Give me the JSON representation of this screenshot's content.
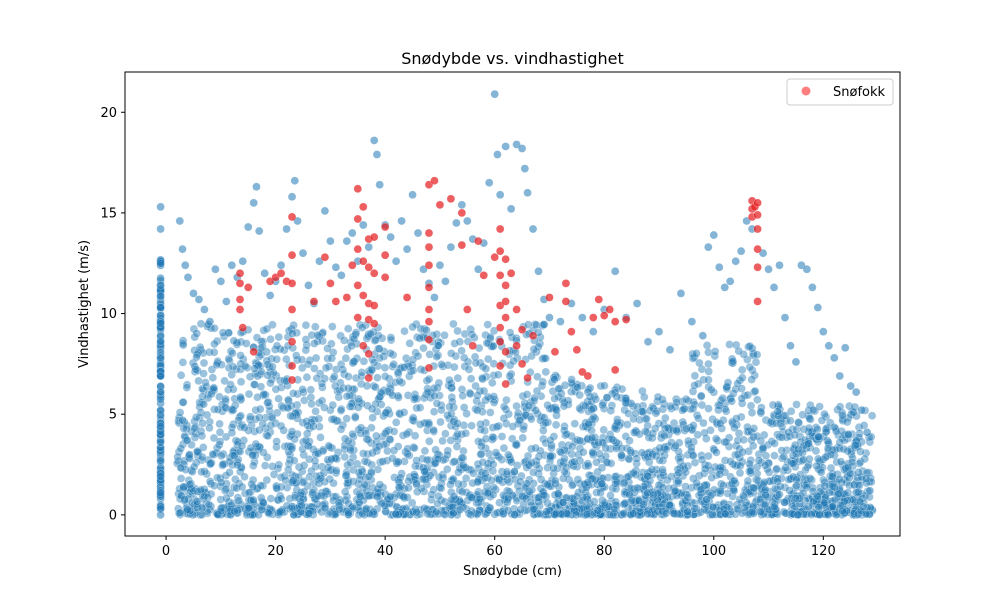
{
  "chart_data": {
    "type": "scatter",
    "title": "Snødybde vs. vindhastighet",
    "xlabel": "Snødybde (cm)",
    "ylabel": "Vindhastighet (m/s)",
    "xlim": [
      -7.5,
      134
    ],
    "ylim": [
      -1.05,
      22.0
    ],
    "x_ticks": [
      0,
      20,
      40,
      60,
      80,
      100,
      120
    ],
    "y_ticks": [
      0,
      5,
      10,
      15,
      20
    ],
    "x_tick_labels": [
      "0",
      "20",
      "40",
      "60",
      "80",
      "100",
      "120"
    ],
    "y_tick_labels": [
      "0",
      "5",
      "10",
      "15",
      "20"
    ],
    "grid": false,
    "legend_position": "upper right",
    "legend": [
      {
        "label": "Snøfokk",
        "color": "#ff0000"
      }
    ],
    "colors": {
      "normal": "#1f77b4",
      "snofokk": "#e41a1c"
    },
    "series": [
      {
        "name": "",
        "color": "#1f77b4",
        "points": [
          [
            -1,
            15.3
          ],
          [
            -1,
            14.2
          ],
          [
            -1,
            12.5
          ],
          [
            -1,
            11.4
          ],
          [
            -1,
            10.3
          ],
          [
            -1,
            9.5
          ],
          [
            -1,
            8.6
          ],
          [
            -1,
            7.8
          ],
          [
            -1,
            6.9
          ],
          [
            -1,
            6.1
          ],
          [
            -1,
            5.2
          ],
          [
            -1,
            4.4
          ],
          [
            -1,
            3.6
          ],
          [
            -1,
            2.7
          ],
          [
            -1,
            1.9
          ],
          [
            -1,
            1.1
          ],
          [
            -1,
            0.3
          ],
          [
            -1,
            0.0
          ],
          [
            2.5,
            14.6
          ],
          [
            3,
            13.2
          ],
          [
            3.5,
            12.4
          ],
          [
            4,
            11.8
          ],
          [
            5,
            11.0
          ],
          [
            6,
            10.7
          ],
          [
            7,
            10.2
          ],
          [
            8,
            9.6
          ],
          [
            9,
            12.2
          ],
          [
            10,
            11.6
          ],
          [
            11,
            10.6
          ],
          [
            12,
            12.4
          ],
          [
            13,
            11.8
          ],
          [
            14,
            12.6
          ],
          [
            15,
            14.3
          ],
          [
            16,
            15.5
          ],
          [
            16.5,
            16.3
          ],
          [
            17,
            14.1
          ],
          [
            18,
            12.0
          ],
          [
            19,
            10.9
          ],
          [
            20,
            11.6
          ],
          [
            21,
            12.4
          ],
          [
            22,
            14.2
          ],
          [
            23,
            15.8
          ],
          [
            23.5,
            16.6
          ],
          [
            24,
            14.6
          ],
          [
            25,
            13.0
          ],
          [
            26,
            11.4
          ],
          [
            27,
            10.5
          ],
          [
            28,
            12.6
          ],
          [
            29,
            15.1
          ],
          [
            30,
            13.6
          ],
          [
            31,
            12.3
          ],
          [
            32,
            11.9
          ],
          [
            33,
            13.6
          ],
          [
            34,
            14.0
          ],
          [
            35,
            12.6
          ],
          [
            36,
            14.4
          ],
          [
            37,
            13.3
          ],
          [
            38,
            18.6
          ],
          [
            38.5,
            17.9
          ],
          [
            39,
            16.4
          ],
          [
            40,
            14.4
          ],
          [
            41,
            13.8
          ],
          [
            42,
            12.6
          ],
          [
            43,
            14.6
          ],
          [
            44,
            13.2
          ],
          [
            45,
            15.9
          ],
          [
            46,
            14.0
          ],
          [
            47,
            12.2
          ],
          [
            48,
            11.5
          ],
          [
            49,
            10.8
          ],
          [
            50,
            12.4
          ],
          [
            51,
            11.6
          ],
          [
            52,
            13.3
          ],
          [
            53,
            14.5
          ],
          [
            54,
            15.4
          ],
          [
            55,
            14.6
          ],
          [
            56,
            13.7
          ],
          [
            57,
            12.2
          ],
          [
            58,
            13.5
          ],
          [
            59,
            16.5
          ],
          [
            60,
            20.9
          ],
          [
            60.5,
            17.9
          ],
          [
            61,
            15.9
          ],
          [
            62,
            18.3
          ],
          [
            63,
            15.2
          ],
          [
            64,
            18.4
          ],
          [
            65,
            18.2
          ],
          [
            65.5,
            17.2
          ],
          [
            66,
            16.0
          ],
          [
            67,
            14.2
          ],
          [
            68,
            12.1
          ],
          [
            69,
            10.7
          ],
          [
            70,
            9.8
          ],
          [
            72,
            9.6
          ],
          [
            74,
            10.5
          ],
          [
            76,
            9.8
          ],
          [
            78,
            9.1
          ],
          [
            80,
            10.2
          ],
          [
            82,
            12.1
          ],
          [
            84,
            9.8
          ],
          [
            86,
            10.5
          ],
          [
            88,
            8.6
          ],
          [
            90,
            9.1
          ],
          [
            92,
            8.2
          ],
          [
            94,
            11.0
          ],
          [
            96,
            9.6
          ],
          [
            98,
            8.9
          ],
          [
            99,
            13.3
          ],
          [
            100,
            13.9
          ],
          [
            101,
            12.3
          ],
          [
            102,
            11.3
          ],
          [
            103,
            11.6
          ],
          [
            104,
            12.6
          ],
          [
            105,
            13.1
          ],
          [
            106,
            14.6
          ],
          [
            107,
            14.2
          ],
          [
            109,
            13.0
          ],
          [
            110,
            12.2
          ],
          [
            111,
            11.3
          ],
          [
            112,
            12.4
          ],
          [
            113,
            9.8
          ],
          [
            114,
            8.4
          ],
          [
            115,
            7.6
          ],
          [
            116,
            12.4
          ],
          [
            117,
            12.2
          ],
          [
            118,
            11.3
          ],
          [
            119,
            10.3
          ],
          [
            120,
            9.1
          ],
          [
            121,
            8.4
          ],
          [
            122,
            7.8
          ],
          [
            123,
            6.9
          ],
          [
            124,
            8.3
          ],
          [
            125,
            6.4
          ],
          [
            126,
            6.1
          ],
          [
            127,
            5.2
          ],
          [
            128,
            4.1
          ],
          [
            128.5,
            1.2
          ]
        ]
      },
      {
        "name": "Snøfokk",
        "color": "#e41a1c",
        "points": [
          [
            13.5,
            12.0
          ],
          [
            13.5,
            11.5
          ],
          [
            13.5,
            10.7
          ],
          [
            13.5,
            10.2
          ],
          [
            14,
            9.3
          ],
          [
            15,
            11.3
          ],
          [
            16,
            8.1
          ],
          [
            19,
            11.6
          ],
          [
            20,
            11.8
          ],
          [
            21,
            12.0
          ],
          [
            22,
            11.6
          ],
          [
            23,
            14.8
          ],
          [
            23,
            12.9
          ],
          [
            23,
            11.5
          ],
          [
            23,
            10.2
          ],
          [
            23,
            8.6
          ],
          [
            23,
            7.4
          ],
          [
            23,
            6.7
          ],
          [
            27,
            10.6
          ],
          [
            29,
            12.8
          ],
          [
            30,
            11.5
          ],
          [
            31,
            10.6
          ],
          [
            33,
            10.8
          ],
          [
            34,
            12.4
          ],
          [
            35,
            16.2
          ],
          [
            35,
            14.7
          ],
          [
            35,
            13.2
          ],
          [
            35,
            11.4
          ],
          [
            35,
            9.8
          ],
          [
            36,
            15.3
          ],
          [
            36,
            12.6
          ],
          [
            36,
            10.9
          ],
          [
            36,
            8.4
          ],
          [
            37,
            13.7
          ],
          [
            37,
            12.3
          ],
          [
            37,
            10.5
          ],
          [
            37,
            9.7
          ],
          [
            37,
            8.0
          ],
          [
            37,
            6.8
          ],
          [
            38,
            13.8
          ],
          [
            38,
            12.0
          ],
          [
            38,
            10.4
          ],
          [
            38,
            9.5
          ],
          [
            40,
            14.3
          ],
          [
            40,
            12.9
          ],
          [
            40,
            11.8
          ],
          [
            44,
            10.8
          ],
          [
            48,
            16.4
          ],
          [
            49,
            16.6
          ],
          [
            48,
            14.0
          ],
          [
            48,
            13.3
          ],
          [
            48,
            12.4
          ],
          [
            48,
            11.3
          ],
          [
            48,
            10.2
          ],
          [
            48,
            9.6
          ],
          [
            48,
            8.7
          ],
          [
            48,
            7.3
          ],
          [
            50,
            15.4
          ],
          [
            52,
            15.7
          ],
          [
            54,
            15.0
          ],
          [
            54,
            13.4
          ],
          [
            55,
            10.2
          ],
          [
            56,
            8.4
          ],
          [
            57,
            13.6
          ],
          [
            58,
            11.9
          ],
          [
            60,
            12.8
          ],
          [
            61,
            14.2
          ],
          [
            61,
            13.1
          ],
          [
            61,
            11.9
          ],
          [
            61,
            10.4
          ],
          [
            61,
            9.3
          ],
          [
            61,
            8.6
          ],
          [
            61,
            7.4
          ],
          [
            62,
            12.7
          ],
          [
            62,
            11.4
          ],
          [
            62,
            10.6
          ],
          [
            62,
            9.8
          ],
          [
            62,
            8.1
          ],
          [
            62,
            6.5
          ],
          [
            63,
            12.0
          ],
          [
            64,
            10.2
          ],
          [
            64,
            8.4
          ],
          [
            65,
            9.2
          ],
          [
            65,
            7.5
          ],
          [
            66,
            6.8
          ],
          [
            67,
            8.9
          ],
          [
            70,
            10.8
          ],
          [
            71,
            8.1
          ],
          [
            73,
            11.5
          ],
          [
            73,
            10.6
          ],
          [
            74,
            9.1
          ],
          [
            75,
            8.2
          ],
          [
            76,
            7.1
          ],
          [
            77,
            6.9
          ],
          [
            78,
            9.8
          ],
          [
            79,
            10.7
          ],
          [
            80,
            9.9
          ],
          [
            81,
            10.2
          ],
          [
            82,
            9.6
          ],
          [
            82,
            7.2
          ],
          [
            84,
            9.7
          ],
          [
            107,
            15.6
          ],
          [
            107,
            15.2
          ],
          [
            107,
            14.8
          ],
          [
            107.5,
            15.3
          ],
          [
            108,
            15.5
          ],
          [
            108,
            14.9
          ],
          [
            108,
            14.2
          ],
          [
            108,
            13.2
          ],
          [
            108,
            12.3
          ],
          [
            108,
            10.6
          ]
        ]
      }
    ]
  }
}
